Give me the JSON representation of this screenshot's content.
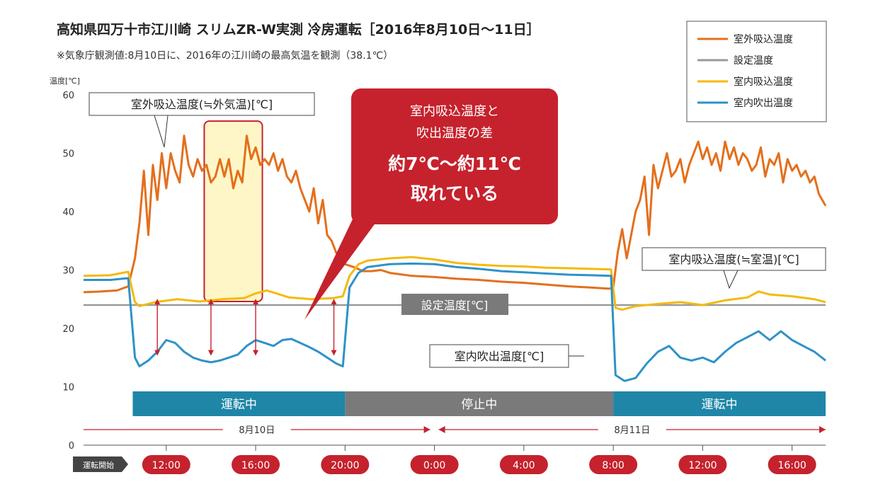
{
  "chart_data": {
    "type": "line",
    "title": "高知県四万十市江川崎 スリムZR-W実測 冷房運転［2016年8月10日〜11日］",
    "subtitle": "※気象庁観測値:8月10日に、2016年の江川崎の最高気温を観測（38.1℃）",
    "ylabel": "温度[℃]",
    "ylim": [
      0,
      60
    ],
    "yticks": [
      "0",
      "10",
      "20",
      "30",
      "40",
      "50",
      "60"
    ],
    "x_range_hours": [
      8.3,
      41.5
    ],
    "time_ticks": [
      {
        "label": "運転開始",
        "hour": 9.2,
        "style": "start"
      },
      {
        "label": "12:00",
        "hour": 12
      },
      {
        "label": "16:00",
        "hour": 16
      },
      {
        "label": "20:00",
        "hour": 20
      },
      {
        "label": "0:00",
        "hour": 24
      },
      {
        "label": "4:00",
        "hour": 28
      },
      {
        "label": "8:00",
        "hour": 32
      },
      {
        "label": "12:00",
        "hour": 36
      },
      {
        "label": "16:00",
        "hour": 40
      }
    ],
    "dates": [
      {
        "label": "8月10日",
        "from": 8.3,
        "to": 24
      },
      {
        "label": "8月11日",
        "from": 24,
        "to": 41.5
      }
    ],
    "bands": [
      {
        "label": "運転中",
        "from": 10.5,
        "to": 20.0,
        "color": "#1f86a7"
      },
      {
        "label": "停止中",
        "from": 20.0,
        "to": 32.0,
        "color": "#7a7a7a"
      },
      {
        "label": "運転中",
        "from": 32.0,
        "to": 41.5,
        "color": "#1f86a7"
      }
    ],
    "legend_position": "top-right",
    "series": [
      {
        "name": "室外吸込温度",
        "color": "#e46f1c",
        "x": [
          8.3,
          9.0,
          9.8,
          10.3,
          10.6,
          10.8,
          11.0,
          11.2,
          11.4,
          11.6,
          11.8,
          12.0,
          12.2,
          12.4,
          12.6,
          12.8,
          13.0,
          13.2,
          13.4,
          13.6,
          13.8,
          14.0,
          14.2,
          14.4,
          14.6,
          14.8,
          15.0,
          15.2,
          15.4,
          15.6,
          15.8,
          16.0,
          16.2,
          16.4,
          16.6,
          16.8,
          17.0,
          17.2,
          17.4,
          17.6,
          17.8,
          18.0,
          18.2,
          18.4,
          18.6,
          18.8,
          19.0,
          19.2,
          19.4,
          19.6,
          19.8,
          20.0,
          20.4,
          20.8,
          21.2,
          21.6,
          22,
          23,
          24,
          25,
          26,
          27,
          28,
          29,
          30,
          31,
          31.8,
          32.0,
          32.2,
          32.4,
          32.6,
          32.8,
          33.0,
          33.2,
          33.4,
          33.6,
          33.8,
          34.0,
          34.2,
          34.4,
          34.6,
          34.8,
          35.0,
          35.2,
          35.4,
          35.6,
          35.8,
          36.0,
          36.2,
          36.4,
          36.6,
          36.8,
          37.0,
          37.2,
          37.4,
          37.6,
          37.8,
          38.0,
          38.2,
          38.4,
          38.6,
          38.8,
          39.0,
          39.2,
          39.4,
          39.6,
          39.8,
          40.0,
          40.2,
          40.4,
          40.6,
          40.8,
          41.0,
          41.2,
          41.5
        ],
        "y": [
          26.2,
          26.3,
          26.5,
          27.2,
          32,
          38,
          47,
          36,
          48,
          42,
          50,
          44,
          50,
          47,
          45,
          53,
          48,
          46,
          49,
          47,
          48,
          45,
          46,
          49,
          46,
          49,
          44,
          47,
          45,
          53,
          49,
          51,
          48,
          49,
          48,
          50,
          47,
          49,
          46,
          45,
          47,
          44,
          42,
          40,
          44,
          38,
          42,
          36,
          35,
          33,
          32,
          31,
          30.5,
          29.8,
          29.8,
          30,
          29.5,
          29,
          28.8,
          28.5,
          28.3,
          28,
          27.8,
          27.5,
          27.2,
          27,
          26.8,
          27,
          33,
          37,
          32,
          36,
          40,
          42,
          46,
          36,
          48,
          44,
          47,
          50,
          46,
          47,
          49,
          45,
          48,
          50,
          52,
          49,
          51,
          48,
          50,
          47,
          52,
          49,
          51,
          48,
          50,
          49,
          47,
          48,
          51,
          46,
          49,
          48,
          50,
          45,
          49,
          47,
          48,
          46,
          47,
          45,
          46,
          43,
          41
        ],
        "label": "室外吸込温度(≒外気温)[℃]"
      },
      {
        "name": "設定温度",
        "color": "#9a9a9a",
        "x": [
          8.3,
          41.5
        ],
        "y": [
          24,
          24
        ],
        "label": "設定温度[℃]"
      },
      {
        "name": "室内吸込温度",
        "color": "#f5b90f",
        "x": [
          8.3,
          9.5,
          10.3,
          10.6,
          10.8,
          11.5,
          12.5,
          13.5,
          14.5,
          15.5,
          16.0,
          16.5,
          17.5,
          18.5,
          19.5,
          19.9,
          20.2,
          20.6,
          21,
          22,
          23,
          24,
          25,
          26,
          27,
          28,
          29,
          30,
          31,
          31.9,
          32.1,
          32.4,
          33,
          34,
          35,
          36,
          37,
          38,
          38.5,
          39,
          40,
          41,
          41.5
        ],
        "y": [
          29,
          29.1,
          29.7,
          24.5,
          23.8,
          24.5,
          25,
          24.6,
          25,
          25.2,
          26,
          26.5,
          25.3,
          25,
          25.2,
          25.5,
          29,
          31,
          31.6,
          32,
          32.2,
          31.8,
          31.2,
          30.9,
          30.7,
          30.6,
          30.4,
          30.3,
          30.2,
          30.1,
          23.5,
          23.2,
          23.8,
          24.2,
          24.5,
          24.0,
          24.8,
          25.3,
          26.3,
          25.8,
          25.5,
          25,
          24.5
        ],
        "label": "室内吸込温度(≒室温)[℃]"
      },
      {
        "name": "室内吹出温度",
        "color": "#2e92c9",
        "x": [
          8.3,
          9.5,
          10.3,
          10.6,
          10.8,
          11.2,
          11.6,
          12.0,
          12.4,
          12.8,
          13.2,
          13.6,
          14.0,
          14.4,
          14.8,
          15.2,
          15.6,
          16.0,
          16.4,
          16.8,
          17.2,
          17.6,
          18.0,
          18.4,
          18.8,
          19.2,
          19.6,
          19.9,
          20.2,
          20.6,
          21,
          22,
          23,
          24,
          25,
          26,
          27,
          28,
          29,
          30,
          31,
          31.9,
          32.1,
          32.5,
          33,
          33.5,
          34,
          34.5,
          35,
          35.5,
          36,
          36.5,
          37,
          37.5,
          38,
          38.5,
          39,
          39.5,
          40,
          40.5,
          41,
          41.5
        ],
        "y": [
          28.3,
          28.3,
          28.6,
          15,
          13.5,
          14.5,
          16,
          18,
          17.5,
          16,
          15,
          14.5,
          14.2,
          14.5,
          15,
          15.5,
          17,
          18,
          17.5,
          17,
          18,
          18.2,
          17.5,
          16.8,
          16,
          15,
          14,
          13.5,
          27,
          29.5,
          30.5,
          31,
          31.1,
          31,
          30.5,
          30.2,
          29.8,
          29.6,
          29.4,
          29.2,
          29.1,
          29,
          12,
          11,
          11.5,
          14,
          16,
          17,
          15,
          14.5,
          15,
          14.2,
          16,
          17.5,
          18.5,
          19.5,
          18,
          19.5,
          18,
          17,
          16,
          14.5
        ],
        "label": "室内吹出温度[℃]"
      }
    ],
    "annotations": {
      "callout_line1": "室内吸込温度と",
      "callout_line2": "吹出温度の差",
      "callout_line3": "約7℃〜約11℃",
      "callout_line4": "取れている"
    }
  }
}
